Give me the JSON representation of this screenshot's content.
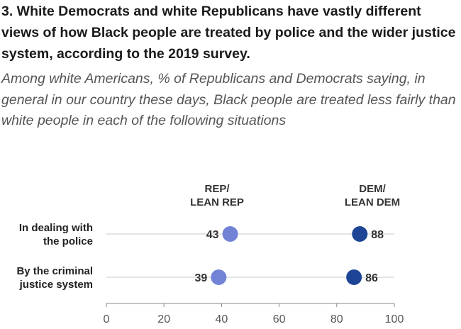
{
  "title": "3. White Democrats and white Republicans have vastly different views of how Black people are treated by police and the wider justice system, according to the 2019 survey.",
  "subtitle": "Among white Americans, % of Republicans and Democrats saying, in general in our country these days, Black people are treated less fairly than white people in each of the following situations",
  "chart_data": {
    "type": "dot",
    "categories": [
      [
        "In dealing with",
        "the police"
      ],
      [
        "By the criminal",
        "justice system"
      ]
    ],
    "series": [
      {
        "name": [
          "REP/",
          "LEAN REP"
        ],
        "values": [
          43,
          39
        ],
        "color": "#7283d6"
      },
      {
        "name": [
          "DEM/",
          "LEAN DEM"
        ],
        "values": [
          88,
          86
        ],
        "color": "#1e4595"
      }
    ],
    "xlim": [
      0,
      100
    ],
    "xticks": [
      0,
      20,
      40,
      60,
      80,
      100
    ],
    "grid": false,
    "legend": "direct labels above series"
  }
}
